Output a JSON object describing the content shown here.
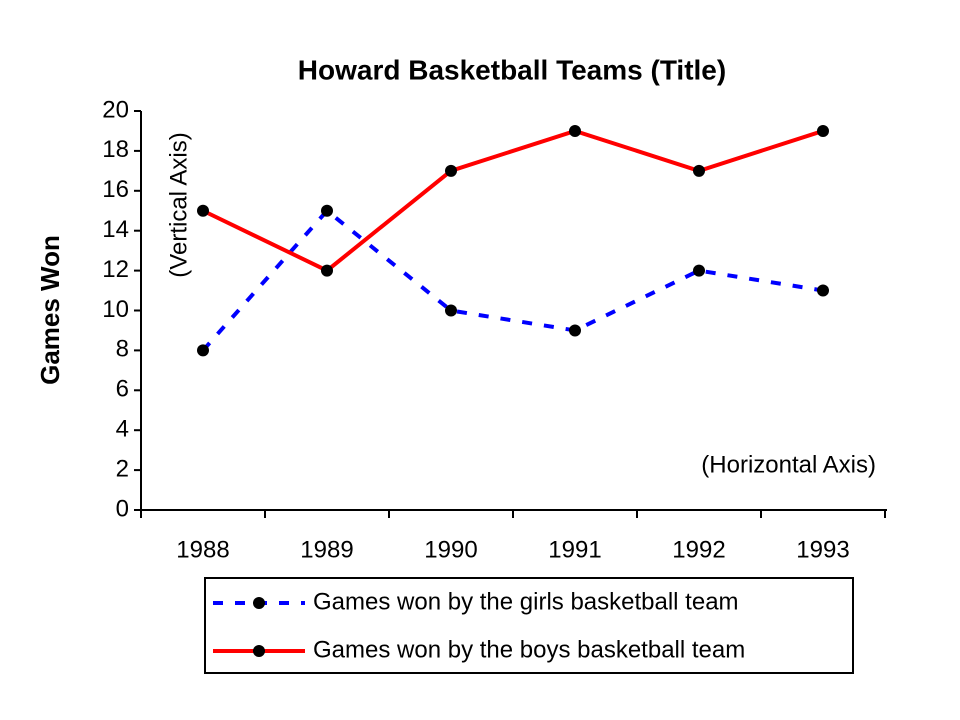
{
  "chart_data": {
    "type": "line",
    "title": "Howard Basketball Teams (Title)",
    "y_label": "Games Won",
    "annotations": [
      "(Vertical Axis)",
      "(Horizontal Axis)"
    ],
    "categories": [
      "1988",
      "1989",
      "1990",
      "1991",
      "1992",
      "1993"
    ],
    "series": [
      {
        "name": "Games won by the girls basketball team",
        "color": "#0000ff",
        "line_style": "dashed",
        "values": [
          8,
          15,
          10,
          9,
          12,
          11
        ]
      },
      {
        "name": "Games won by the boys basketball team",
        "color": "#ff0000",
        "line_style": "solid",
        "values": [
          15,
          12,
          17,
          19,
          17,
          19
        ]
      }
    ],
    "marker_color": "#000000",
    "ylim": [
      0,
      20
    ],
    "yticks": [
      0,
      2,
      4,
      6,
      8,
      10,
      12,
      14,
      16,
      18,
      20
    ],
    "grid": false,
    "legend": "bottom"
  }
}
